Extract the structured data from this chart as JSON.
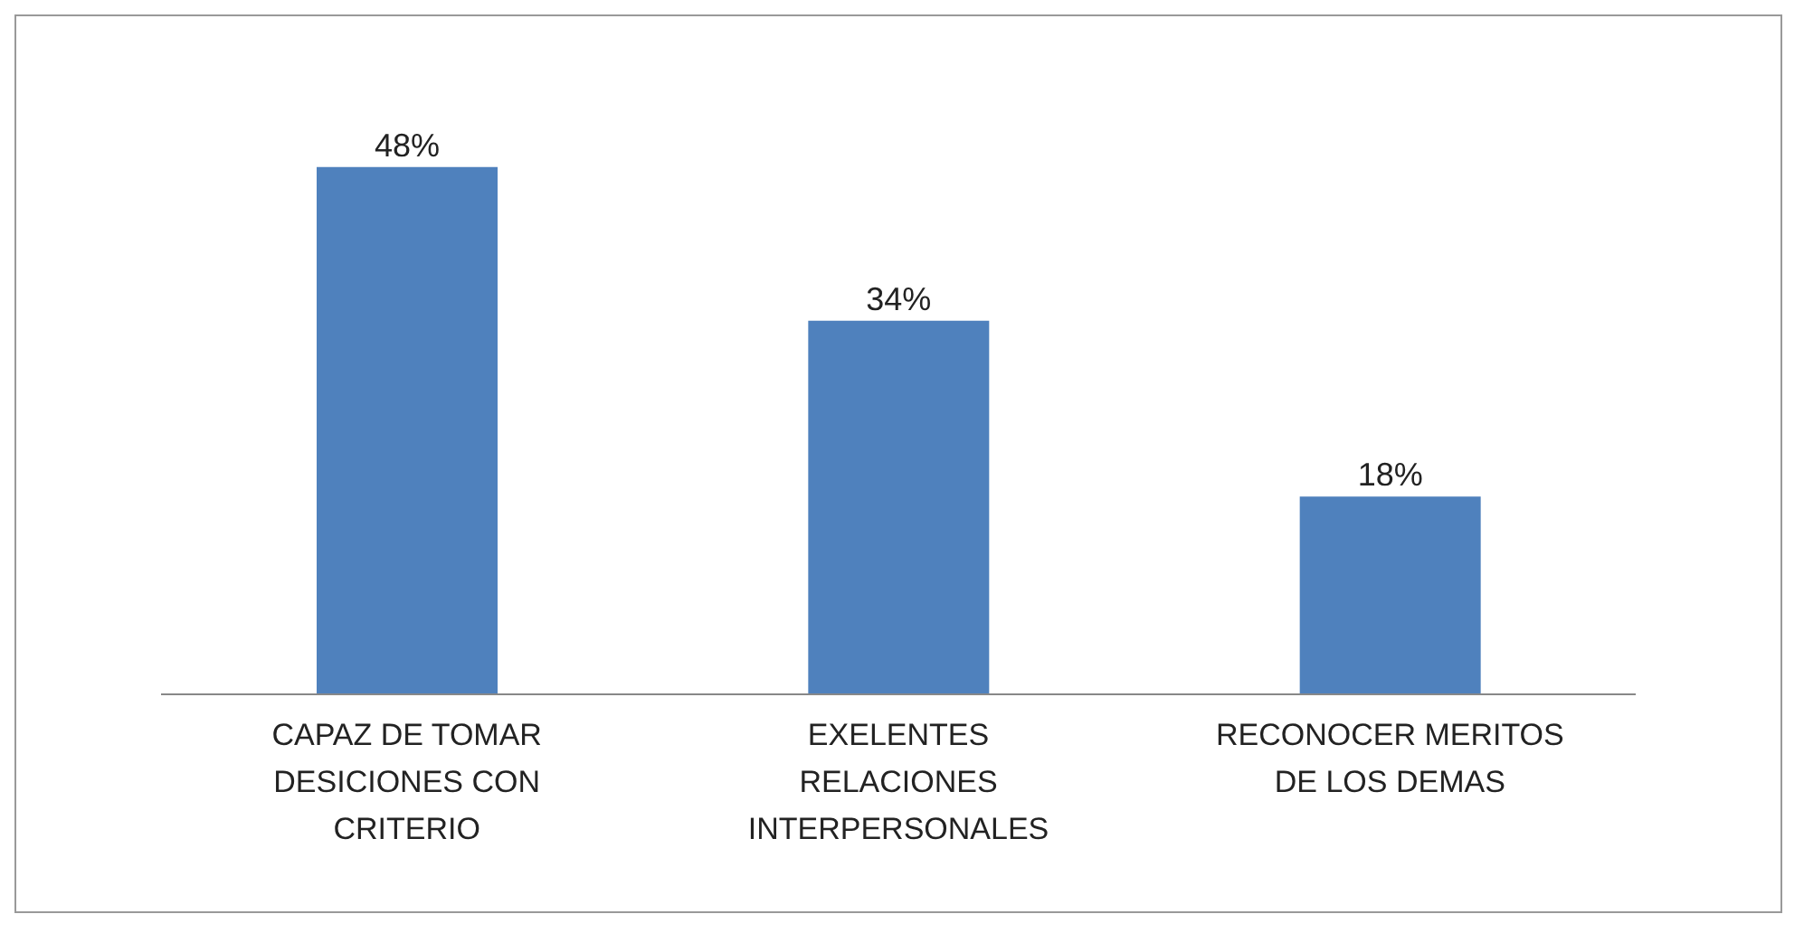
{
  "chart_data": {
    "type": "bar",
    "categories": [
      "CAPAZ DE TOMAR DESICIONES CON CRITERIO",
      "EXELENTES RELACIONES INTERPERSONALES",
      "RECONOCER MERITOS DE LOS DEMAS"
    ],
    "values": [
      48,
      34,
      18
    ],
    "color": "#4f81bd",
    "data_labels": true,
    "value_labels": [
      "48%",
      "34%",
      "18%"
    ],
    "grid": false,
    "legend": false
  }
}
